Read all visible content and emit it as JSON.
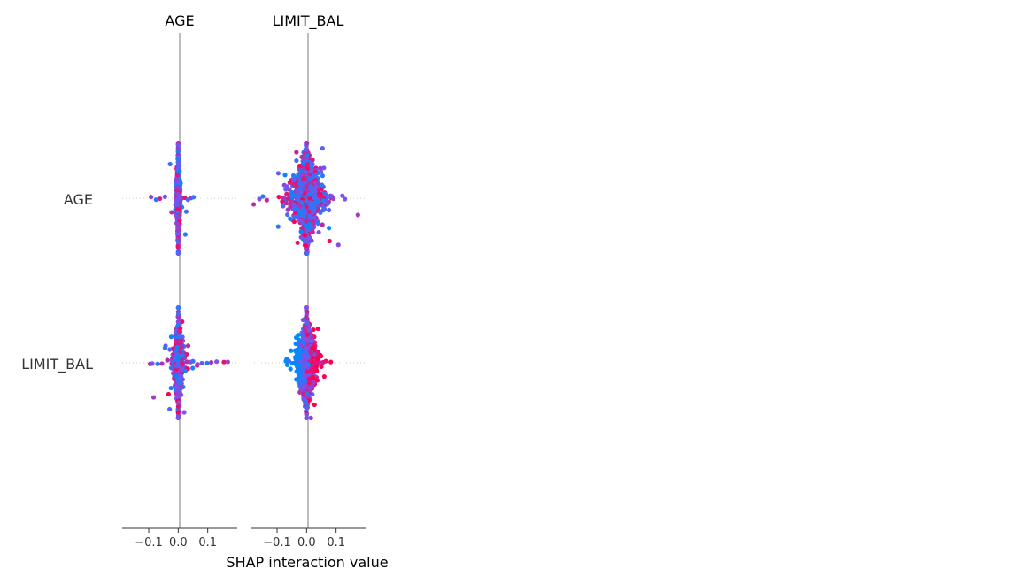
{
  "chart_data": {
    "type": "scatter",
    "subtype": "shap-interaction-beeswarm-matrix",
    "xlabel": "SHAP interaction value",
    "columns": [
      "AGE",
      "LIMIT_BAL"
    ],
    "rows": [
      "AGE",
      "LIMIT_BAL"
    ],
    "xlim": [
      -0.19,
      0.2
    ],
    "xticks": [
      -0.1,
      0.0,
      0.1
    ],
    "xtick_labels": [
      "−0.1",
      "0.0",
      "0.1"
    ],
    "color_scale": {
      "low": "#008bfb",
      "mid": "#7c52f0",
      "high": "#ff0051"
    },
    "panels": [
      {
        "row": "AGE",
        "col": "AGE",
        "n_points": 520,
        "spread": 0.004,
        "tail": 0.018,
        "vspan": 0.86,
        "seed": 11,
        "outliers": [
          [
            -0.092,
            0.6
          ],
          [
            -0.075,
            0.1
          ],
          [
            -0.062,
            0.8
          ],
          [
            -0.045,
            0.4
          ],
          [
            0.022,
            0.9
          ],
          [
            0.033,
            0.3
          ],
          [
            0.043,
            0.6
          ],
          [
            0.052,
            0.2
          ]
        ]
      },
      {
        "row": "AGE",
        "col": "LIMIT_BAL",
        "n_points": 1100,
        "spread": 0.033,
        "tail": 0.055,
        "vspan": 0.86,
        "seed": 23,
        "outliers": [
          [
            -0.16,
            0.5
          ],
          [
            -0.148,
            0.2
          ],
          [
            -0.135,
            0.8
          ],
          [
            0.075,
            0.4
          ],
          [
            0.09,
            0.6
          ],
          [
            0.13,
            0.5
          ]
        ]
      },
      {
        "row": "LIMIT_BAL",
        "col": "AGE",
        "n_points": 700,
        "spread": 0.009,
        "tail": 0.03,
        "vspan": 0.86,
        "seed": 37,
        "outliers": [
          [
            -0.095,
            0.9
          ],
          [
            -0.088,
            0.5
          ],
          [
            -0.07,
            0.2
          ],
          [
            -0.055,
            0.7
          ],
          [
            0.05,
            0.3
          ],
          [
            0.065,
            0.6
          ],
          [
            0.08,
            0.4
          ],
          [
            0.098,
            0.2
          ],
          [
            0.112,
            0.7
          ],
          [
            0.13,
            0.5
          ],
          [
            0.155,
            0.9
          ],
          [
            0.168,
            0.6
          ]
        ]
      },
      {
        "row": "LIMIT_BAL",
        "col": "LIMIT_BAL",
        "n_points": 900,
        "spread": 0.02,
        "tail": 0.025,
        "vspan": 0.86,
        "seed": 53,
        "outliers": [
          [
            -0.07,
            0.0
          ],
          [
            -0.06,
            0.3
          ],
          [
            0.05,
            0.8
          ],
          [
            0.065,
            0.9
          ],
          [
            0.082,
            1.0
          ]
        ]
      }
    ]
  }
}
